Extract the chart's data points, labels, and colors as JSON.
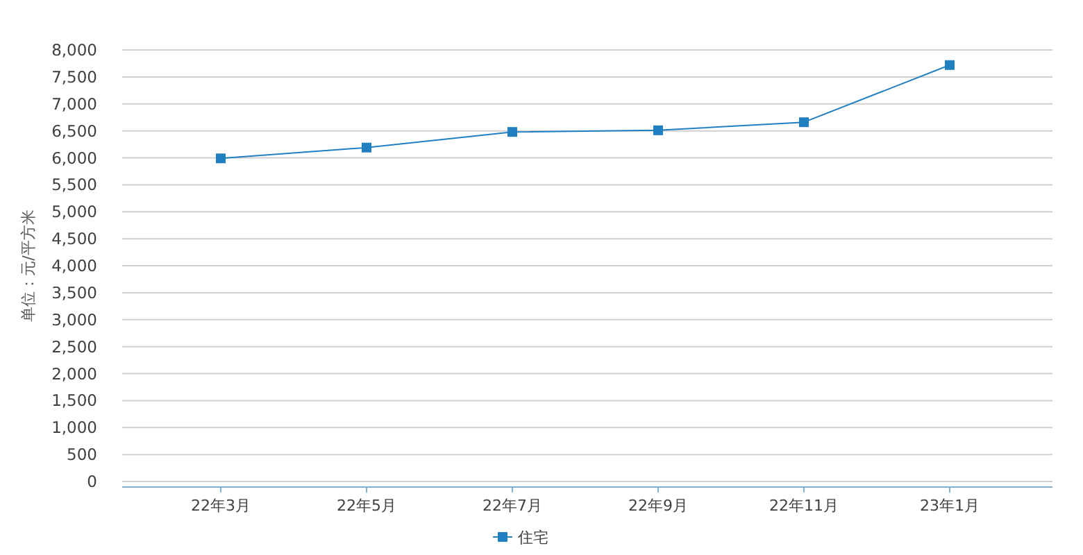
{
  "chart_data": {
    "type": "line",
    "ylabel": "单位：元/平方米",
    "categories": [
      "22年3月",
      "22年5月",
      "22年7月",
      "22年9月",
      "22年11月",
      "23年1月"
    ],
    "series": [
      {
        "name": "住宅",
        "color": "#1f7fc1",
        "values": [
          5990,
          6190,
          6480,
          6510,
          6660,
          7720
        ]
      }
    ],
    "ylim": [
      0,
      8000
    ],
    "yticks": [
      {
        "value": 0,
        "label": "0"
      },
      {
        "value": 500,
        "label": "500"
      },
      {
        "value": 1000,
        "label": "1,000"
      },
      {
        "value": 1500,
        "label": "1,500"
      },
      {
        "value": 2000,
        "label": "2,000"
      },
      {
        "value": 2500,
        "label": "2,500"
      },
      {
        "value": 3000,
        "label": "3,000"
      },
      {
        "value": 3500,
        "label": "3,500"
      },
      {
        "value": 4000,
        "label": "4,000"
      },
      {
        "value": 4500,
        "label": "4,500"
      },
      {
        "value": 5000,
        "label": "5,000"
      },
      {
        "value": 5500,
        "label": "5,500"
      },
      {
        "value": 6000,
        "label": "6,000"
      },
      {
        "value": 6500,
        "label": "6,500"
      },
      {
        "value": 7000,
        "label": "7,000"
      },
      {
        "value": 7500,
        "label": "7,500"
      },
      {
        "value": 8000,
        "label": "8,000"
      }
    ],
    "grid": "y",
    "legend": "bottom",
    "marker": "square",
    "line_style": "solid"
  }
}
